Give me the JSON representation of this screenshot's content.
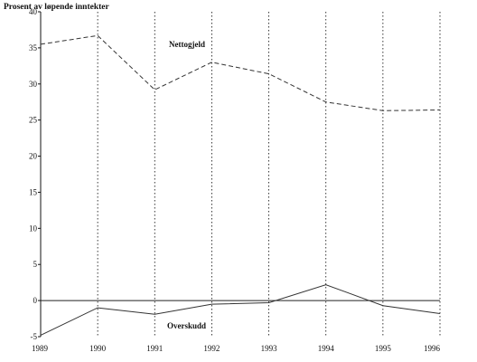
{
  "chart_data": {
    "type": "line",
    "title": "",
    "ylabel": "Prosent av løpende inntekter",
    "xlabel": "",
    "categories": [
      "1989",
      "1990",
      "1991",
      "1992",
      "1993",
      "1994",
      "1995",
      "1996"
    ],
    "ylim": [
      -5,
      40
    ],
    "yticks": [
      "-5",
      "0",
      "5",
      "10",
      "15",
      "20",
      "25",
      "30",
      "35",
      "40"
    ],
    "grid": "vertical dotted lines at each year",
    "zero_line": true,
    "series": [
      {
        "name": "Nettogjeld",
        "values": [
          35.5,
          36.7,
          29.2,
          33.0,
          31.4,
          27.5,
          26.3,
          26.4
        ],
        "style": "dashed",
        "color": "#333333"
      },
      {
        "name": "Overskudd",
        "values": [
          -4.8,
          -1.0,
          -1.9,
          -0.5,
          -0.3,
          2.2,
          -0.7,
          -1.8
        ],
        "style": "solid",
        "color": "#333333"
      }
    ]
  }
}
